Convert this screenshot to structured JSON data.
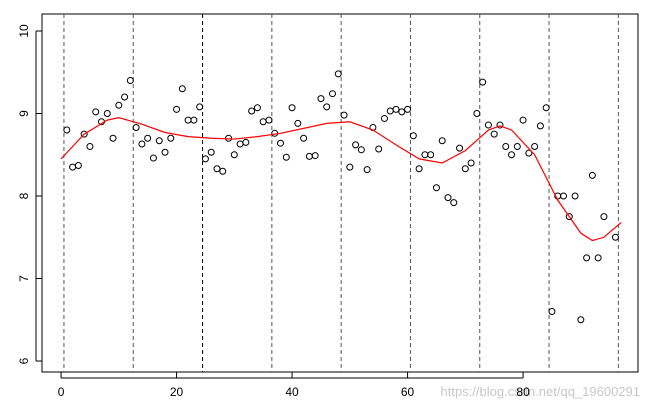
{
  "chart_data": {
    "type": "scatter",
    "x": [
      1,
      2,
      3,
      4,
      5,
      6,
      7,
      8,
      9,
      10,
      11,
      12,
      13,
      14,
      15,
      16,
      17,
      18,
      19,
      20,
      21,
      22,
      23,
      24,
      25,
      26,
      27,
      28,
      29,
      30,
      31,
      32,
      33,
      34,
      35,
      36,
      37,
      38,
      39,
      40,
      41,
      42,
      43,
      44,
      45,
      46,
      47,
      48,
      49,
      50,
      51,
      52,
      53,
      54,
      55,
      56,
      57,
      58,
      59,
      60,
      61,
      62,
      63,
      64,
      65,
      66,
      67,
      68,
      69,
      70,
      71,
      72,
      73,
      74,
      75,
      76,
      77,
      78,
      79,
      80,
      81,
      82,
      83,
      84,
      85,
      86,
      87,
      88,
      89,
      90,
      91,
      92,
      93,
      94,
      96
    ],
    "values": [
      8.8,
      8.35,
      8.37,
      8.75,
      8.6,
      9.02,
      8.9,
      9.0,
      8.7,
      9.1,
      9.2,
      9.4,
      8.83,
      8.63,
      8.7,
      8.46,
      8.67,
      8.53,
      8.7,
      9.05,
      9.3,
      8.92,
      8.92,
      9.08,
      8.45,
      8.53,
      8.33,
      8.3,
      8.7,
      8.5,
      8.63,
      8.65,
      9.03,
      9.07,
      8.9,
      8.92,
      8.76,
      8.64,
      8.47,
      9.07,
      8.88,
      8.7,
      8.48,
      8.49,
      9.18,
      9.08,
      9.24,
      9.48,
      8.98,
      8.35,
      8.62,
      8.56,
      8.32,
      8.83,
      8.57,
      8.94,
      9.03,
      9.05,
      9.02,
      9.05,
      8.73,
      8.33,
      8.5,
      8.5,
      8.1,
      8.67,
      7.98,
      7.92,
      8.58,
      8.33,
      8.4,
      9.0,
      9.38,
      8.86,
      8.75,
      8.86,
      8.6,
      8.5,
      8.6,
      8.92,
      8.52,
      8.6,
      8.85,
      9.07,
      6.6,
      8.0,
      8.0,
      7.75,
      8.0,
      6.5,
      7.25,
      8.25,
      7.25,
      7.75,
      7.5
    ],
    "smooth": {
      "color": "#ff0000",
      "x": [
        0,
        4,
        8,
        10,
        14,
        18,
        22,
        26,
        30,
        34,
        38,
        42,
        46,
        50,
        54,
        58,
        62,
        66,
        70,
        74,
        76,
        78,
        82,
        86,
        90,
        92,
        94,
        97
      ],
      "values": [
        8.45,
        8.75,
        8.92,
        8.95,
        8.87,
        8.77,
        8.72,
        8.7,
        8.69,
        8.72,
        8.76,
        8.82,
        8.88,
        8.9,
        8.8,
        8.62,
        8.45,
        8.4,
        8.55,
        8.8,
        8.85,
        8.8,
        8.5,
        7.95,
        7.55,
        7.46,
        7.5,
        7.68
      ]
    },
    "vlines": [
      0.5,
      12.5,
      24.5,
      36.5,
      48.5,
      60.5,
      72.5,
      84.5,
      96.5
    ],
    "xlim": [
      -3.3,
      99.9
    ],
    "ylim": [
      5.867,
      10.206
    ],
    "xticks": [
      0,
      20,
      40,
      60,
      80
    ],
    "yticks": [
      6,
      7,
      8,
      9,
      10
    ],
    "annotation": "https://blog.csdn.net/qq_19600291"
  }
}
